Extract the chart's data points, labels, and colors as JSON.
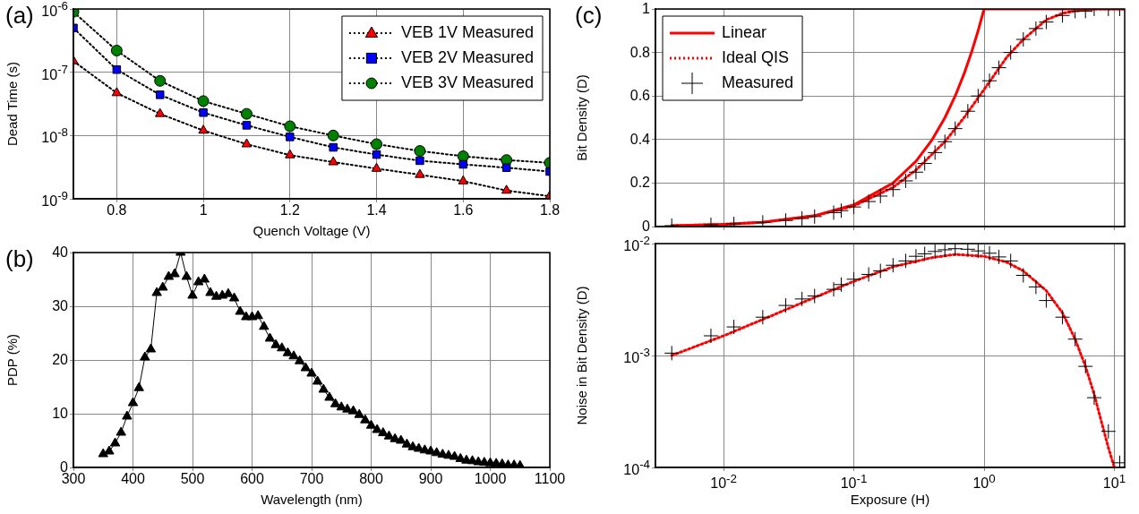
{
  "chart_data": [
    {
      "type": "line",
      "annotations": [
        "(a)"
      ],
      "xlabel": "Quench Voltage (V)",
      "ylabel": "Dead Time (s)",
      "x": [
        0.7,
        0.8,
        0.9,
        1.0,
        1.1,
        1.2,
        1.3,
        1.4,
        1.5,
        1.6,
        1.7,
        1.8
      ],
      "line_style": "dotted",
      "log": "y",
      "grid": true,
      "legend": "top right",
      "xlim": [
        0.7,
        1.8
      ],
      "xticks": [
        0.8,
        1,
        1.2,
        1.4,
        1.6,
        1.8
      ],
      "ylim": [
        1e-09,
        1e-06
      ],
      "yticks": [
        {
          "value": 1e-09,
          "label": "10$^{-9}$"
        },
        {
          "value": 1e-08,
          "label": "10$^{-8}$"
        },
        {
          "value": 1e-07,
          "label": "10$^{-7}$"
        },
        {
          "value": 1e-06,
          "label": "10$^{-6}$"
        }
      ],
      "series": [
        {
          "name": "VEB 1V Measured",
          "color": "#ff0000",
          "marker": "triangle",
          "values": [
            1.5e-07,
            4.7e-08,
            2.2e-08,
            1.2e-08,
            7.3e-09,
            4.9e-09,
            3.8e-09,
            3e-09,
            2.4e-09,
            1.9e-09,
            1.35e-09,
            1.1e-09
          ]
        },
        {
          "name": "VEB 2V Measured",
          "color": "#0000ff",
          "marker": "square",
          "values": [
            5e-07,
            1.1e-07,
            4.4e-08,
            2.3e-08,
            1.45e-08,
            9.5e-09,
            6.5e-09,
            5e-09,
            4e-09,
            3.5e-09,
            3.1e-09,
            2.7e-09
          ]
        },
        {
          "name": "VEB 3V Measured",
          "color": "#008000",
          "marker": "circle",
          "values": [
            9e-07,
            2.2e-07,
            7.3e-08,
            3.5e-08,
            2.2e-08,
            1.4e-08,
            1e-08,
            7.3e-09,
            5.7e-09,
            4.7e-09,
            4.1e-09,
            3.7e-09
          ]
        }
      ]
    },
    {
      "type": "line",
      "annotations": [
        "(b)"
      ],
      "xlabel": "Wavelength (nm)",
      "ylabel": "PDP (%)",
      "marker": "triangle",
      "line_style": "solid",
      "grid": true,
      "xlim": [
        300,
        1100
      ],
      "xticks": [
        300,
        400,
        500,
        600,
        700,
        800,
        900,
        1000,
        1100
      ],
      "ylim": [
        0,
        40
      ],
      "yticks": [
        0,
        10,
        20,
        30,
        40
      ],
      "x": [
        350,
        360,
        370,
        380,
        390,
        400,
        410,
        420,
        430,
        440,
        450,
        460,
        470,
        480,
        490,
        500,
        510,
        520,
        530,
        540,
        550,
        560,
        570,
        580,
        590,
        600,
        610,
        620,
        630,
        640,
        650,
        660,
        670,
        680,
        690,
        700,
        710,
        720,
        730,
        740,
        750,
        760,
        770,
        780,
        790,
        800,
        810,
        820,
        830,
        840,
        850,
        860,
        870,
        880,
        890,
        900,
        910,
        920,
        930,
        940,
        950,
        960,
        970,
        980,
        990,
        1000,
        1010,
        1020,
        1030,
        1040,
        1050
      ],
      "series": [
        {
          "color": "#000000",
          "values": [
            2.5,
            3,
            4.5,
            6.5,
            9.5,
            12,
            14.8,
            20.5,
            22,
            32.5,
            33.5,
            35.5,
            36,
            40,
            35.5,
            32,
            34.5,
            35,
            32.5,
            31.8,
            32,
            32.3,
            31.5,
            29,
            28,
            28,
            28.2,
            26.2,
            24,
            22.8,
            22.2,
            21.3,
            20.7,
            19.8,
            18.5,
            17.5,
            16,
            14.5,
            13,
            11.8,
            11.2,
            10.8,
            10.5,
            9.8,
            8.8,
            7.8,
            7,
            6.4,
            5.8,
            5.3,
            5,
            4.3,
            3.8,
            3.5,
            3.2,
            3.0,
            2.7,
            2.4,
            2.2,
            2,
            1.6,
            1.3,
            1.2,
            1.0,
            0.9,
            0.8,
            0.7,
            0.6,
            0.4,
            0.4,
            0.3
          ]
        }
      ]
    },
    {
      "type": "line",
      "annotations": [
        "(c)"
      ],
      "ylabel": "Bit Density (D)",
      "log": "x",
      "grid": true,
      "legend": "top left",
      "tick_labels": "y",
      "xlim": [
        0.003,
        12
      ],
      "xticks": [
        {
          "value": 0.01,
          "label": null
        },
        {
          "value": 0.1,
          "label": null
        },
        {
          "value": 1,
          "label": null
        },
        {
          "value": 10,
          "label": null
        }
      ],
      "ylim": [
        0,
        1
      ],
      "yticks": [
        0,
        0.2,
        0.4,
        0.6,
        0.8,
        1
      ],
      "series": [
        {
          "name": "Linear",
          "color": "#ff0000",
          "line_style": "solid",
          "x": [
            0.004,
            0.01,
            0.02,
            0.05,
            0.1,
            0.2,
            0.3,
            0.4,
            0.5,
            0.6,
            0.7,
            0.8,
            0.9,
            1,
            12
          ],
          "values": [
            0.004,
            0.01,
            0.02,
            0.05,
            0.1,
            0.2,
            0.3,
            0.4,
            0.5,
            0.6,
            0.7,
            0.8,
            0.9,
            1,
            1
          ]
        },
        {
          "name": "Ideal QIS",
          "color": "#ff0000",
          "line_style": "dotted",
          "x": [
            0.004,
            0.01,
            0.02,
            0.05,
            0.1,
            0.2,
            0.3,
            0.5,
            0.7,
            1,
            1.5,
            2,
            3,
            4,
            5,
            7,
            12
          ],
          "values": [
            0.004,
            0.01,
            0.02,
            0.049,
            0.095,
            0.18,
            0.26,
            0.39,
            0.5,
            0.63,
            0.78,
            0.86,
            0.95,
            0.98,
            0.99,
            1,
            1
          ]
        },
        {
          "name": "Measured",
          "type": "scatter",
          "color": "#000000",
          "marker": "cross",
          "x": [
            0.004,
            0.008,
            0.012,
            0.02,
            0.03,
            0.04,
            0.05,
            0.07,
            0.08,
            0.1,
            0.13,
            0.16,
            0.2,
            0.25,
            0.3,
            0.35,
            0.42,
            0.5,
            0.6,
            0.75,
            0.9,
            1.1,
            1.3,
            1.6,
            2,
            2.5,
            3,
            4,
            5,
            6,
            7,
            9,
            11
          ],
          "values": [
            0.004,
            0.008,
            0.012,
            0.019,
            0.028,
            0.037,
            0.046,
            0.064,
            0.073,
            0.09,
            0.115,
            0.14,
            0.17,
            0.21,
            0.25,
            0.29,
            0.34,
            0.39,
            0.45,
            0.53,
            0.6,
            0.67,
            0.73,
            0.8,
            0.86,
            0.91,
            0.94,
            0.97,
            0.99,
            0.99,
            1,
            1,
            1
          ]
        }
      ]
    },
    {
      "type": "line",
      "xlabel": "Exposure (H)",
      "ylabel": "Noise in Bit Density (D)",
      "log": "xy",
      "grid": true,
      "xlim": [
        0.003,
        12
      ],
      "xticks": [
        {
          "value": 0.01,
          "label": "10$^{-2}$"
        },
        {
          "value": 0.1,
          "label": "10$^{-1}$"
        },
        {
          "value": 1,
          "label": "10$^{0}$"
        },
        {
          "value": 10,
          "label": "10$^{1}$"
        }
      ],
      "ylim": [
        0.0001,
        0.01
      ],
      "yticks": [
        {
          "value": 0.0001,
          "label": "10$^{-4}$"
        },
        {
          "value": 0.001,
          "label": "10$^{-3}$"
        },
        {
          "value": 0.01,
          "label": "10$^{-2}$"
        }
      ],
      "series": [
        {
          "color": "#ff0000",
          "line_style": "dotted",
          "x": [
            0.004,
            0.01,
            0.02,
            0.05,
            0.1,
            0.2,
            0.4,
            0.6,
            1,
            1.5,
            2,
            3,
            4,
            5,
            6,
            7,
            8,
            9,
            10
          ],
          "values": [
            0.001,
            0.0015,
            0.0021,
            0.0033,
            0.0046,
            0.0062,
            0.0075,
            0.008,
            0.0077,
            0.0068,
            0.0057,
            0.0038,
            0.0024,
            0.0014,
            0.0008,
            0.00045,
            0.00025,
            0.00015,
            0.0001
          ]
        },
        {
          "type": "scatter",
          "color": "#000000",
          "marker": "cross",
          "x": [
            0.004,
            0.008,
            0.012,
            0.02,
            0.03,
            0.04,
            0.05,
            0.07,
            0.08,
            0.1,
            0.13,
            0.16,
            0.2,
            0.25,
            0.3,
            0.35,
            0.42,
            0.5,
            0.6,
            0.75,
            0.9,
            1.1,
            1.3,
            1.6,
            2,
            2.5,
            3,
            4,
            5,
            6,
            7,
            9,
            11
          ],
          "values": [
            0.00105,
            0.0015,
            0.0018,
            0.0022,
            0.0028,
            0.0032,
            0.0034,
            0.0039,
            0.0043,
            0.0048,
            0.0053,
            0.0057,
            0.0064,
            0.007,
            0.0077,
            0.0081,
            0.0085,
            0.0088,
            0.009,
            0.0089,
            0.0086,
            0.0082,
            0.0076,
            0.007,
            0.0052,
            0.0041,
            0.0031,
            0.0022,
            0.0014,
            0.0008,
            0.00042,
            0.00021,
            0.00011
          ]
        }
      ]
    }
  ]
}
